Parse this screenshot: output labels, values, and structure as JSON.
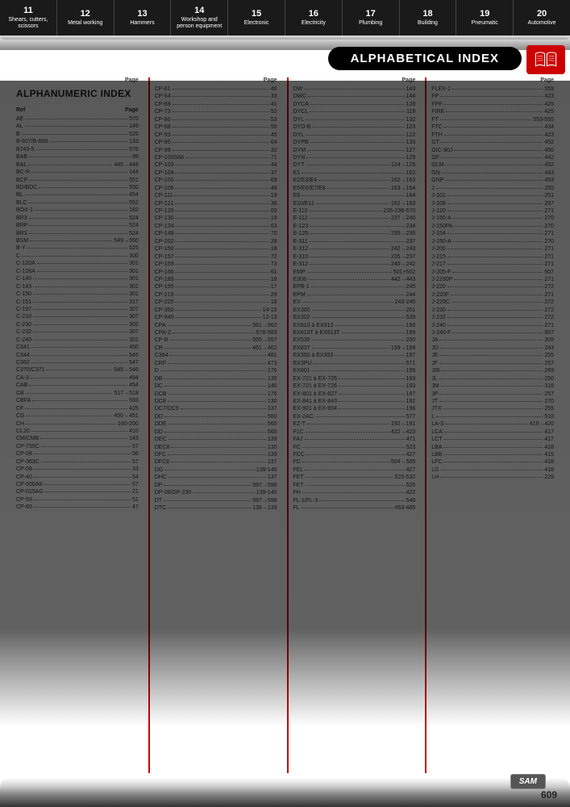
{
  "tabs": [
    {
      "num": "11",
      "label": "Shears, cutters, scissors"
    },
    {
      "num": "12",
      "label": "Metal working"
    },
    {
      "num": "13",
      "label": "Hammers"
    },
    {
      "num": "14",
      "label": "Workshop and person equipment"
    },
    {
      "num": "15",
      "label": "Electronic"
    },
    {
      "num": "16",
      "label": "Electricity"
    },
    {
      "num": "17",
      "label": "Plumbing"
    },
    {
      "num": "18",
      "label": "Building"
    },
    {
      "num": "19",
      "label": "Pneumatic"
    },
    {
      "num": "20",
      "label": "Automotive"
    }
  ],
  "title": "ALPHABETICAL INDEX",
  "sectionTitle": "ALPHANUMERIC INDEX",
  "colHeader": {
    "ref": "Ref",
    "page": "Page"
  },
  "pageNum": "609",
  "logo": "SAM",
  "col1": [
    {
      "r": "AE",
      "p": "570"
    },
    {
      "r": "AL",
      "p": "149"
    },
    {
      "r": "B",
      "p": "525"
    },
    {
      "r": "B-607/B-608",
      "p": "133"
    },
    {
      "r": "B743-5",
      "p": "576"
    },
    {
      "r": "BAB",
      "p": "99"
    },
    {
      "r": "BAL",
      "p": "445→448"
    },
    {
      "r": "BC-R",
      "p": "144"
    },
    {
      "r": "BCP",
      "p": "551"
    },
    {
      "r": "BD/BDC",
      "p": "550"
    },
    {
      "r": "BL",
      "p": "454"
    },
    {
      "r": "BLC",
      "p": "552"
    },
    {
      "r": "BOX-1",
      "p": "182"
    },
    {
      "r": "BR3",
      "p": "524"
    },
    {
      "r": "BRP",
      "p": "524"
    },
    {
      "r": "BR3",
      "p": "524"
    },
    {
      "r": "BSM",
      "p": "549→550"
    },
    {
      "r": "B-Y",
      "p": "525"
    },
    {
      "r": "C",
      "p": "300"
    },
    {
      "r": "C-120A",
      "p": "301"
    },
    {
      "r": "C-128A",
      "p": "301"
    },
    {
      "r": "C-140",
      "p": "301"
    },
    {
      "r": "C-143",
      "p": "301"
    },
    {
      "r": "C-150",
      "p": "301"
    },
    {
      "r": "C-151",
      "p": "317"
    },
    {
      "r": "C-197",
      "p": "307"
    },
    {
      "r": "C-210",
      "p": "307"
    },
    {
      "r": "C-230",
      "p": "302"
    },
    {
      "r": "C-232",
      "p": "307"
    },
    {
      "r": "C-240",
      "p": "301"
    },
    {
      "r": "C341",
      "p": "450"
    },
    {
      "r": "C344",
      "p": "545"
    },
    {
      "r": "C362",
      "p": "547"
    },
    {
      "r": "C370/C371",
      "p": "545→546"
    },
    {
      "r": "CA-3",
      "p": "494"
    },
    {
      "r": "CAB",
      "p": "454"
    },
    {
      "r": "CB",
      "p": "517→518"
    },
    {
      "r": "CBFA",
      "p": "593"
    },
    {
      "r": "CF",
      "p": "425"
    },
    {
      "r": "CG",
      "p": "450→451"
    },
    {
      "r": "CH",
      "p": "160-200"
    },
    {
      "r": "CL20",
      "p": "410"
    },
    {
      "r": "CM/CMB",
      "p": "143"
    },
    {
      "r": "CP-755C",
      "p": "57"
    },
    {
      "r": "CP-08",
      "p": "56"
    },
    {
      "r": "CP-363C",
      "p": "57"
    },
    {
      "r": "CP-08",
      "p": "33"
    },
    {
      "r": "CP-40",
      "p": "54"
    },
    {
      "r": "CP-500A8",
      "p": "57"
    },
    {
      "r": "CP-015AG",
      "p": "21"
    },
    {
      "r": "CP-59",
      "p": "51"
    },
    {
      "r": "CP-60",
      "p": "47"
    }
  ],
  "col2": [
    {
      "r": "CP-61",
      "p": "46"
    },
    {
      "r": "CP-64",
      "p": "33"
    },
    {
      "r": "CP-69",
      "p": "41"
    },
    {
      "r": "CP-73",
      "p": "52"
    },
    {
      "r": "CP-80",
      "p": "53"
    },
    {
      "r": "CP-88",
      "p": "50"
    },
    {
      "r": "CP-93",
      "p": "45"
    },
    {
      "r": "CP-95",
      "p": "64"
    },
    {
      "r": "CP-99",
      "p": "32"
    },
    {
      "r": "CP-1000A8",
      "p": "71"
    },
    {
      "r": "CP-103",
      "p": "44"
    },
    {
      "r": "CP-104",
      "p": "37"
    },
    {
      "r": "CP-100",
      "p": "69"
    },
    {
      "r": "CP-106",
      "p": "48"
    },
    {
      "r": "CP-111",
      "p": "19"
    },
    {
      "r": "CP-121",
      "p": "36"
    },
    {
      "r": "CP-129",
      "p": "65"
    },
    {
      "r": "CP-130",
      "p": "19"
    },
    {
      "r": "CP-134",
      "p": "63"
    },
    {
      "r": "CP-149",
      "p": "70"
    },
    {
      "r": "CP-202",
      "p": "28"
    },
    {
      "r": "CP-150",
      "p": "18"
    },
    {
      "r": "CP-157",
      "p": "72"
    },
    {
      "r": "CP-159",
      "p": "73"
    },
    {
      "r": "CP-166",
      "p": "61"
    },
    {
      "r": "CP-189",
      "p": "18"
    },
    {
      "r": "CP-195",
      "p": "17"
    },
    {
      "r": "CP-219",
      "p": "29"
    },
    {
      "r": "CP-220",
      "p": "16"
    },
    {
      "r": "CP-350",
      "p": "14-15"
    },
    {
      "r": "CP-849",
      "p": "12-13"
    },
    {
      "r": "CPA",
      "p": "561→562"
    },
    {
      "r": "CPA-Z",
      "p": "576-583"
    },
    {
      "r": "CP-B",
      "p": "555→557"
    },
    {
      "r": "CR",
      "p": "461→462"
    },
    {
      "r": "C364",
      "p": "481"
    },
    {
      "r": "CRF",
      "p": "473"
    },
    {
      "r": "D",
      "p": "176"
    },
    {
      "r": "DB",
      "p": "135"
    },
    {
      "r": "DC",
      "p": "140"
    },
    {
      "r": "DCB",
      "p": "176"
    },
    {
      "r": "DC8",
      "p": "130"
    },
    {
      "r": "DC7/DC9",
      "p": "137"
    },
    {
      "r": "DD",
      "p": "560"
    },
    {
      "r": "DDE",
      "p": "560"
    },
    {
      "r": "DD",
      "p": "560"
    },
    {
      "r": "DEC",
      "p": "139"
    },
    {
      "r": "DEC8",
      "p": "130"
    },
    {
      "r": "DFC",
      "p": "139"
    },
    {
      "r": "DFC8",
      "p": "137"
    },
    {
      "r": "DG",
      "p": "139-140"
    },
    {
      "r": "DHC",
      "p": "137"
    },
    {
      "r": "DP",
      "p": "597→598"
    },
    {
      "r": "DP-08/DP-230",
      "p": "139-140"
    },
    {
      "r": "DT",
      "p": "597→598"
    },
    {
      "r": "DTC",
      "p": "138→139"
    }
  ],
  "col3": [
    {
      "r": "DW",
      "p": "143"
    },
    {
      "r": "DWC",
      "p": "144"
    },
    {
      "r": "DYCA",
      "p": "128"
    },
    {
      "r": "DYCL",
      "p": "118"
    },
    {
      "r": "DYL",
      "p": "132"
    },
    {
      "r": "DYD-B",
      "p": "123"
    },
    {
      "r": "DYL",
      "p": "122"
    },
    {
      "r": "DYPB",
      "p": "133"
    },
    {
      "r": "DYM",
      "p": "127"
    },
    {
      "r": "DYN",
      "p": "129"
    },
    {
      "r": "DYT",
      "p": "124→125"
    },
    {
      "r": "E1",
      "p": "162"
    },
    {
      "r": "E2/E3/E4",
      "p": "162→163"
    },
    {
      "r": "E5/E6/E7/E8",
      "p": "163→164"
    },
    {
      "r": "E9",
      "p": "164"
    },
    {
      "r": "E10/E11",
      "p": "162→163"
    },
    {
      "r": "E-110",
      "p": "235-236-570"
    },
    {
      "r": "E-112",
      "p": "237→240"
    },
    {
      "r": "E-123",
      "p": "234"
    },
    {
      "r": "E-125",
      "p": "235→236"
    },
    {
      "r": "E-311",
      "p": "237"
    },
    {
      "r": "E-312",
      "p": "242→243"
    },
    {
      "r": "E-310",
      "p": "235→237"
    },
    {
      "r": "E-312",
      "p": "240→242"
    },
    {
      "r": "EMP",
      "p": "501+502"
    },
    {
      "r": "E308",
      "p": "442→443"
    },
    {
      "r": "EPB-1",
      "p": "245"
    },
    {
      "r": "EPM",
      "p": "244"
    },
    {
      "r": "EV",
      "p": "243-245"
    },
    {
      "r": "EX300",
      "p": "201"
    },
    {
      "r": "EX302",
      "p": "539"
    },
    {
      "r": "EX810 à EX913",
      "p": "199"
    },
    {
      "r": "EX810T à EX813T",
      "p": "199"
    },
    {
      "r": "EX530",
      "p": "200"
    },
    {
      "r": "EX837",
      "p": "199→199"
    },
    {
      "r": "EX350 à EX353",
      "p": "197"
    },
    {
      "r": "EX3PU",
      "p": "571"
    },
    {
      "r": "EX801",
      "p": "195"
    },
    {
      "r": "EX-721 à EX-726",
      "p": "193"
    },
    {
      "r": "EX-721 à EX-726",
      "p": "193"
    },
    {
      "r": "EX-801 à EX-827",
      "p": "197"
    },
    {
      "r": "EX-841 à EX-843",
      "p": "192"
    },
    {
      "r": "EX-901 à EX-904",
      "p": "196"
    },
    {
      "r": "EX-2AC",
      "p": "577"
    },
    {
      "r": "EZ-T",
      "p": "192→191"
    },
    {
      "r": "F1C",
      "p": "422→423"
    },
    {
      "r": "FAJ",
      "p": "471"
    },
    {
      "r": "FC",
      "p": "523"
    },
    {
      "r": "FCC",
      "p": "427"
    },
    {
      "r": "FD",
      "p": "504→505"
    },
    {
      "r": "FEL",
      "p": "427"
    },
    {
      "r": "FET",
      "p": "525-532"
    },
    {
      "r": "FET",
      "p": "525"
    },
    {
      "r": "FH",
      "p": "422"
    },
    {
      "r": "FL-1/FL-3",
      "p": "548"
    },
    {
      "r": "FL",
      "p": "453-485"
    }
  ],
  "col4": [
    {
      "r": "FLEX-1",
      "p": "559"
    },
    {
      "r": "FP",
      "p": "423"
    },
    {
      "r": "FPF",
      "p": "425"
    },
    {
      "r": "FIRE",
      "p": "425"
    },
    {
      "r": "FT",
      "p": "553-555"
    },
    {
      "r": "FTC",
      "p": "434"
    },
    {
      "r": "FTH",
      "p": "423"
    },
    {
      "r": "GT",
      "p": "452"
    },
    {
      "r": "GIC-90J",
      "p": "450"
    },
    {
      "r": "GF",
      "p": "442"
    },
    {
      "r": "GLM",
      "p": "452"
    },
    {
      "r": "GN",
      "p": "443"
    },
    {
      "r": "GNP",
      "p": "453"
    },
    {
      "r": "J",
      "p": "255"
    },
    {
      "r": "J-101",
      "p": "251"
    },
    {
      "r": "J-108",
      "p": "297"
    },
    {
      "r": "J-120",
      "p": "271"
    },
    {
      "r": "J-150-A",
      "p": "270"
    },
    {
      "r": "J-150PA",
      "p": "270"
    },
    {
      "r": "J-154",
      "p": "271"
    },
    {
      "r": "J-150-A",
      "p": "270"
    },
    {
      "r": "J-200",
      "p": "271"
    },
    {
      "r": "J-215",
      "p": "271"
    },
    {
      "r": "J-217",
      "p": "271"
    },
    {
      "r": "J-205-F",
      "p": "507"
    },
    {
      "r": "J-2150P",
      "p": "271"
    },
    {
      "r": "J-220",
      "p": "272"
    },
    {
      "r": "J-220F",
      "p": "271"
    },
    {
      "r": "J-229C",
      "p": "272"
    },
    {
      "r": "J-230",
      "p": "272"
    },
    {
      "r": "J-232",
      "p": "272"
    },
    {
      "r": "J-240",
      "p": "271"
    },
    {
      "r": "J-240-F",
      "p": "507"
    },
    {
      "r": "JA",
      "p": "305"
    },
    {
      "r": "JD",
      "p": "243"
    },
    {
      "r": "JE",
      "p": "255"
    },
    {
      "r": "JF",
      "p": "257"
    },
    {
      "r": "JIB",
      "p": "269"
    },
    {
      "r": "JL",
      "p": "250"
    },
    {
      "r": "JM",
      "p": "318"
    },
    {
      "r": "JP",
      "p": "257"
    },
    {
      "r": "JT",
      "p": "270"
    },
    {
      "r": "JTX",
      "p": "255"
    },
    {
      "r": "L",
      "p": "518"
    },
    {
      "r": "LA-S",
      "p": "419→420"
    },
    {
      "r": "LCA",
      "p": "417"
    },
    {
      "r": "LCT",
      "p": "417"
    },
    {
      "r": "LBA",
      "p": "418"
    },
    {
      "r": "LBB",
      "p": "415"
    },
    {
      "r": "LFC",
      "p": "418"
    },
    {
      "r": "LG",
      "p": "418"
    },
    {
      "r": "LH",
      "p": "229"
    }
  ]
}
